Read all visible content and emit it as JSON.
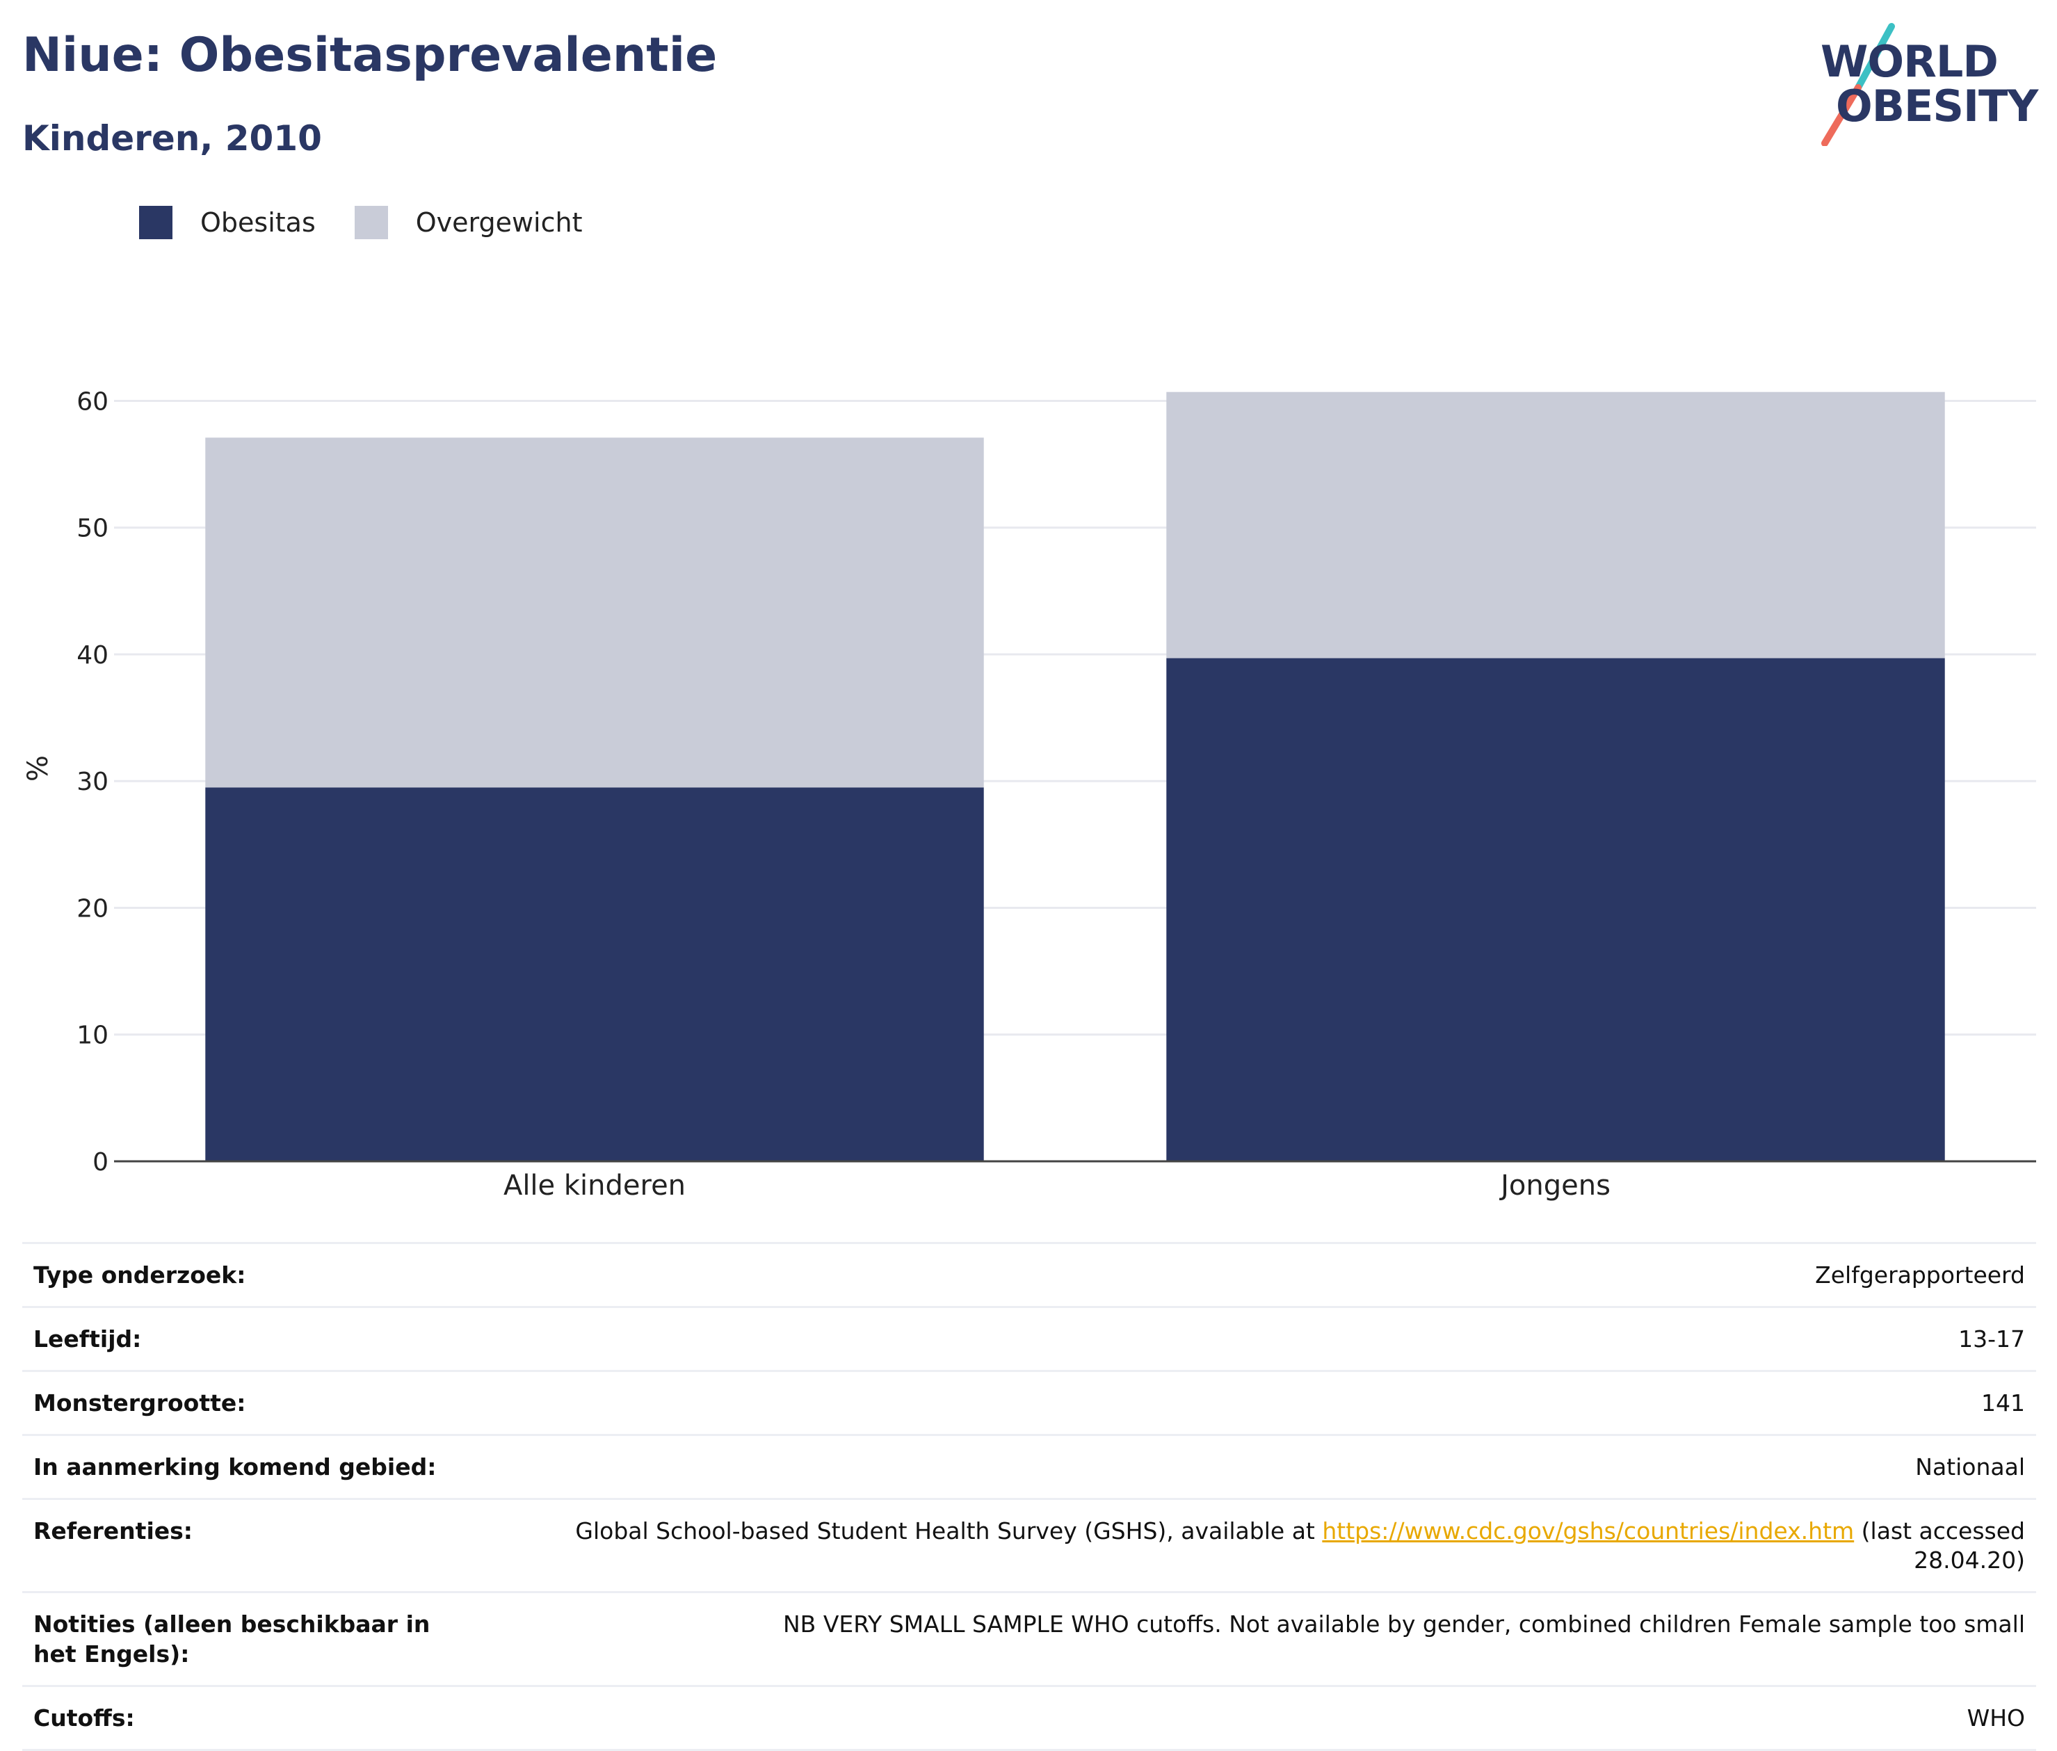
{
  "header": {
    "title": "Niue: Obesitasprevalentie",
    "subtitle": "Kinderen, 2010"
  },
  "logo": {
    "line1": "WORLD",
    "line2": "OBESITY",
    "colors": {
      "text": "#2a3764",
      "slash_top": "#3cc0c4",
      "slash_bottom": "#ee6b5b"
    }
  },
  "legend": {
    "items": [
      {
        "label": "Obesitas",
        "color": "#2a3764"
      },
      {
        "label": "Overgewicht",
        "color": "#c9ccd8"
      }
    ]
  },
  "chart_data": {
    "type": "bar",
    "stacked": true,
    "title": "Niue: Obesitasprevalentie",
    "subtitle": "Kinderen, 2010",
    "xlabel": "",
    "ylabel": "%",
    "categories": [
      "Alle kinderen",
      "Jongens"
    ],
    "series": [
      {
        "name": "Obesitas",
        "color": "#2a3764",
        "values": [
          29.5,
          39.7
        ]
      },
      {
        "name": "Overgewicht",
        "color": "#c9ccd8",
        "values": [
          27.6,
          21.0
        ]
      }
    ],
    "ylim": [
      0,
      62
    ],
    "yticks": [
      0,
      10,
      20,
      30,
      40,
      50,
      60
    ],
    "grid": true,
    "legend_position": "top-left"
  },
  "meta": {
    "rows": [
      {
        "key": "Type onderzoek:",
        "value": "Zelfgerapporteerd"
      },
      {
        "key": "Leeftijd:",
        "value": "13-17"
      },
      {
        "key": "Monstergrootte:",
        "value": "141"
      },
      {
        "key": "In aanmerking komend gebied:",
        "value": "Nationaal"
      },
      {
        "key": "Referenties:",
        "value": "Global School-based Student Health Survey (GSHS), available at ",
        "link": "https://www.cdc.gov/gshs/countries/index.htm",
        "suffix": " (last accessed 28.04.20)"
      },
      {
        "key": "Notities (alleen beschikbaar in het Engels):",
        "value": "NB VERY SMALL SAMPLE WHO cutoffs. Not available by gender, combined children Female sample too small"
      },
      {
        "key": "Cutoffs:",
        "value": "WHO"
      }
    ]
  }
}
